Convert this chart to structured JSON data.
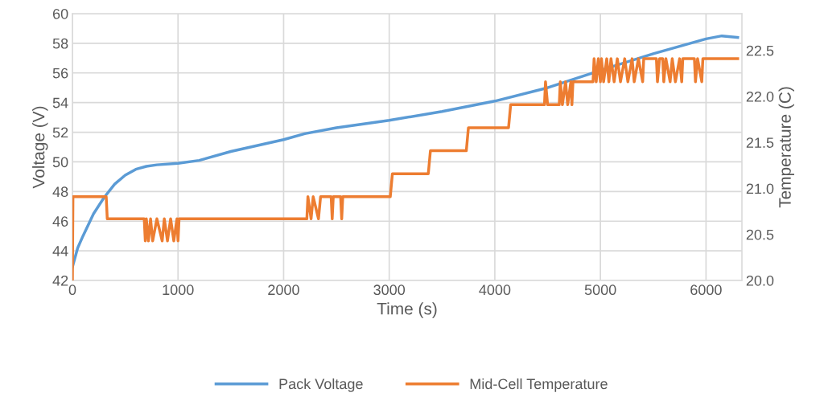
{
  "chart_data": {
    "type": "line",
    "xlabel": "Time (s)",
    "ylabel": "Voltage (V)",
    "y2label": "Temperature (C)",
    "xlim": [
      0,
      6340
    ],
    "xticks": [
      0,
      1000,
      2000,
      3000,
      4000,
      5000,
      6000
    ],
    "ylim": [
      42,
      60
    ],
    "yticks": [
      42,
      44,
      46,
      48,
      50,
      52,
      54,
      56,
      58,
      60
    ],
    "y2lim": [
      20,
      22.9
    ],
    "y2ticks": [
      {
        "value": 20,
        "label": "20.0"
      },
      {
        "value": 20.5,
        "label": "20.5"
      },
      {
        "value": 21,
        "label": "21.0"
      },
      {
        "value": 21.5,
        "label": "21.5"
      },
      {
        "value": 22,
        "label": "22.0"
      },
      {
        "value": 22.5,
        "label": "22.5"
      }
    ],
    "grid": true,
    "legend": "bottom",
    "marker": "none",
    "line_style": "solid",
    "series": [
      {
        "name": "Pack Voltage",
        "color": "#5b9bd5",
        "x": [
          0,
          50,
          100,
          200,
          300,
          400,
          500,
          600,
          700,
          800,
          1000,
          1200,
          1500,
          2000,
          2200,
          2500,
          3000,
          3500,
          4000,
          4500,
          5100,
          5500,
          6000,
          6150,
          6300
        ],
        "values": [
          42.9,
          44.2,
          45.0,
          46.5,
          47.6,
          48.5,
          49.1,
          49.5,
          49.7,
          49.8,
          49.9,
          50.1,
          50.7,
          51.5,
          51.9,
          52.3,
          52.8,
          53.4,
          54.1,
          55.0,
          56.4,
          57.3,
          58.3,
          58.5,
          58.4
        ]
      },
      {
        "name": "Mid-Cell Temperature",
        "color": "#ed7d31",
        "axis": "y2",
        "x": [
          0,
          5,
          320,
          330,
          680,
          690,
          700,
          720,
          740,
          760,
          800,
          850,
          870,
          900,
          930,
          960,
          990,
          1000,
          1010,
          2220,
          2230,
          2260,
          2280,
          2330,
          2350,
          2450,
          2460,
          2470,
          2540,
          2550,
          2560,
          3010,
          3030,
          3370,
          3390,
          3730,
          3750,
          4130,
          4150,
          4470,
          4480,
          4500,
          4610,
          4620,
          4640,
          4670,
          4690,
          4720,
          4730,
          4740,
          4930,
          4940,
          4960,
          4980,
          5000,
          5010,
          5030,
          5060,
          5080,
          5100,
          5130,
          5160,
          5190,
          5230,
          5260,
          5300,
          5320,
          5360,
          5400,
          5410,
          5530,
          5540,
          5560,
          5590,
          5600,
          5620,
          5660,
          5680,
          5710,
          5750,
          5770,
          5780,
          5890,
          5900,
          5920,
          5960,
          5970,
          6300
        ],
        "values": [
          20.0,
          20.91,
          20.91,
          20.67,
          20.67,
          20.43,
          20.67,
          20.43,
          20.67,
          20.43,
          20.67,
          20.43,
          20.67,
          20.43,
          20.67,
          20.43,
          20.67,
          20.43,
          20.67,
          20.67,
          20.91,
          20.67,
          20.91,
          20.67,
          20.91,
          20.91,
          20.67,
          20.91,
          20.91,
          20.67,
          20.91,
          20.91,
          21.16,
          21.16,
          21.41,
          21.41,
          21.66,
          21.66,
          21.91,
          21.91,
          22.16,
          21.91,
          21.91,
          22.16,
          21.91,
          22.16,
          21.91,
          22.16,
          21.91,
          22.16,
          22.16,
          22.41,
          22.16,
          22.41,
          22.16,
          22.41,
          22.16,
          22.41,
          22.16,
          22.41,
          22.16,
          22.41,
          22.16,
          22.41,
          22.16,
          22.41,
          22.16,
          22.41,
          22.16,
          22.41,
          22.41,
          22.16,
          22.41,
          22.41,
          22.16,
          22.41,
          22.16,
          22.41,
          22.16,
          22.41,
          22.16,
          22.41,
          22.41,
          22.16,
          22.41,
          22.16,
          22.41,
          22.41
        ]
      }
    ]
  }
}
